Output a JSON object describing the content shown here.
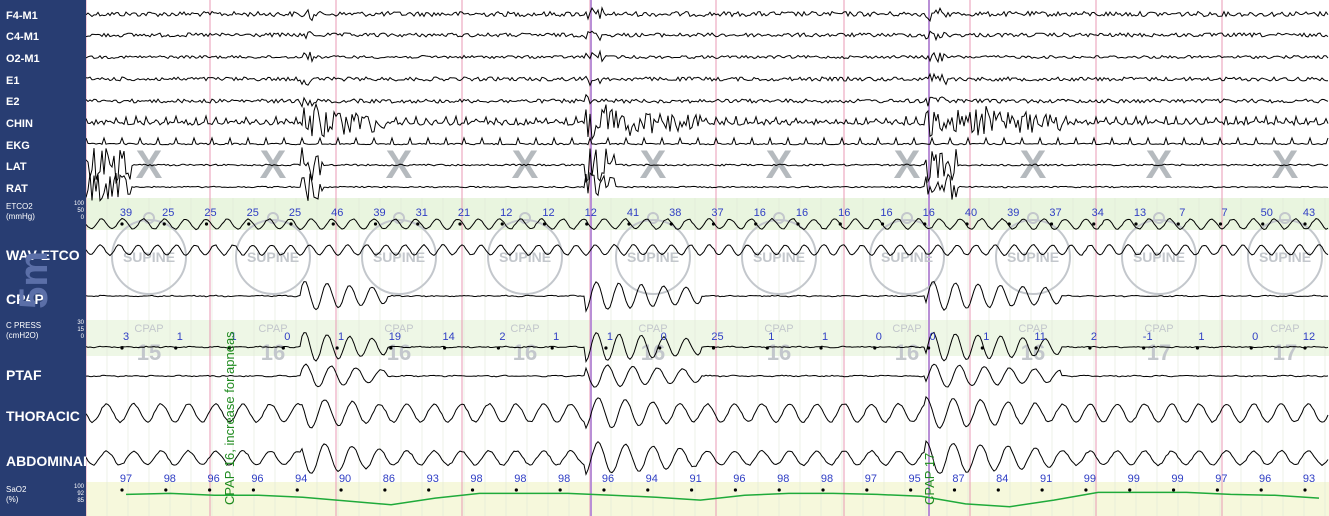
{
  "sidebar": {
    "channels": [
      {
        "label": "F4-M1",
        "size": "s"
      },
      {
        "label": "C4-M1",
        "size": "s"
      },
      {
        "label": "O2-M1",
        "size": "s"
      },
      {
        "label": "E1",
        "size": "s"
      },
      {
        "label": "E2",
        "size": "s"
      },
      {
        "label": "CHIN",
        "size": "s"
      },
      {
        "label": "EKG",
        "size": "s"
      },
      {
        "label": "LAT",
        "size": "s"
      },
      {
        "label": "RAT",
        "size": "s"
      },
      {
        "label": "ETCO2\n(mmHg)",
        "size": "xs",
        "scale": [
          "100",
          "50",
          "0"
        ]
      },
      {
        "label": "WAV ETCO",
        "size": "m"
      },
      {
        "label": "CPAP",
        "size": "m"
      },
      {
        "label": "C PRESS\n(cmH2O)",
        "size": "xs",
        "scale": [
          "30",
          "15",
          "0"
        ]
      },
      {
        "label": "PTAF",
        "size": "m"
      },
      {
        "label": "THORACIC",
        "size": "m"
      },
      {
        "label": "ABDOMINAL",
        "size": "m"
      },
      {
        "label": "SaO2\n(%)",
        "size": "xs",
        "scale": [
          "100",
          "92",
          "85"
        ]
      }
    ],
    "epoch_marker": "5m"
  },
  "epochs": {
    "sleep_stage_mark": "X",
    "position": "SUPINE",
    "cpap_label": "CPAP",
    "cpap_values": [
      "15",
      "16",
      "16",
      "16",
      "16",
      "16",
      "16",
      "16",
      "17",
      "17"
    ]
  },
  "etco2_values": [
    "39",
    "25",
    "25",
    "25",
    "25",
    "46",
    "39",
    "31",
    "21",
    "12",
    "12",
    "12",
    "41",
    "38",
    "37",
    "16",
    "16",
    "16",
    "16",
    "16",
    "40",
    "39",
    "37",
    "34",
    "13",
    "7",
    "7",
    "50",
    "43"
  ],
  "cpress_values": [
    "3",
    "1",
    "1",
    "0",
    "1",
    "19",
    "14",
    "2",
    "1",
    "1",
    "0",
    "25",
    "1",
    "1",
    "0",
    "0",
    "1",
    "11",
    "2",
    "-1",
    "1",
    "0",
    "12"
  ],
  "sao2_values": [
    "97",
    "98",
    "96",
    "96",
    "94",
    "90",
    "86",
    "93",
    "98",
    "98",
    "98",
    "96",
    "94",
    "91",
    "96",
    "98",
    "98",
    "97",
    "95",
    "87",
    "84",
    "91",
    "99",
    "99",
    "99",
    "97",
    "96",
    "93"
  ],
  "annotations": {
    "cpap_increase": "CPAP 16, increase for apneas",
    "cpap_17": "CPAP 17"
  },
  "colors": {
    "sidebar": "#283d72",
    "trace": "#000000",
    "value_blue": "#2f3ec4",
    "annotation_green": "#1e8a1e",
    "epoch_line": "#e89ab4",
    "sao2_curve": "#1faa3a"
  }
}
